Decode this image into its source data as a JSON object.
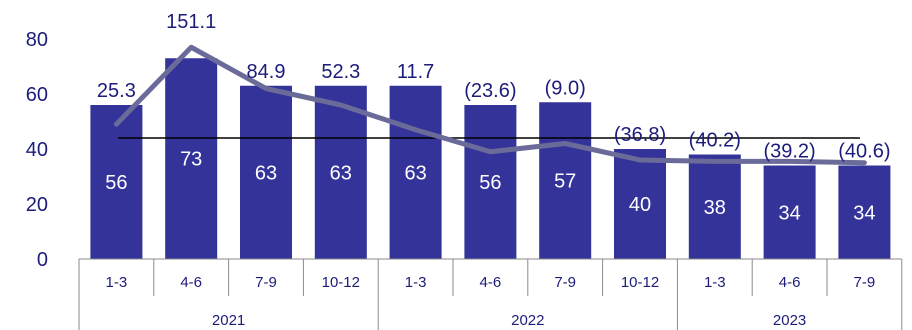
{
  "chart_data": {
    "type": "bar",
    "ylim": [
      0,
      80
    ],
    "y_ticks": [
      "0",
      "20",
      "40",
      "60",
      "80"
    ],
    "categories": [
      "1-3",
      "4-6",
      "7-9",
      "10-12",
      "1-3",
      "4-6",
      "7-9",
      "10-12",
      "1-3",
      "4-6",
      "7-9"
    ],
    "years": [
      {
        "label": "2021",
        "span": 4
      },
      {
        "label": "2022",
        "span": 4
      },
      {
        "label": "2023",
        "span": 3
      }
    ],
    "bar_values": [
      56,
      73,
      63,
      63,
      63,
      56,
      57,
      40,
      38,
      34,
      34
    ],
    "bar_labels": [
      "56",
      "73",
      "63",
      "63",
      "63",
      "56",
      "57",
      "40",
      "38",
      "34",
      "34"
    ],
    "line_values": [
      49,
      77,
      62,
      56,
      47,
      39,
      42,
      36,
      35.5,
      35.5,
      35
    ],
    "line_labels": [
      "25.3",
      "151.1",
      "84.9",
      "52.3",
      "11.7",
      "(23.6)",
      "(9.0)",
      "(36.8)",
      "(40.2)",
      "(39.2)",
      "(40.6)"
    ],
    "reference_value": 44,
    "colors": {
      "bar": "#33339a",
      "line": "#6b6b9a",
      "reference": "#000000",
      "axis_text": "#1c1c7a",
      "bar_label": "#ffffff"
    }
  }
}
